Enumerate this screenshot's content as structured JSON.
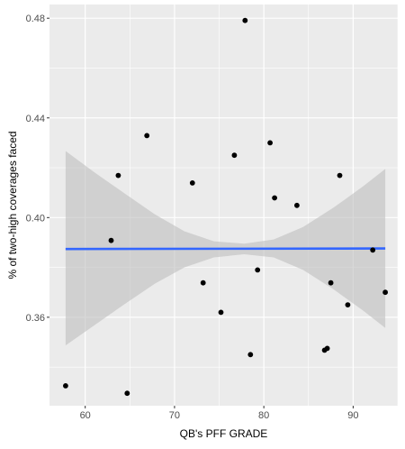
{
  "chart_data": {
    "type": "scatter",
    "xlabel": "QB's PFF GRADE",
    "ylabel": "% of two-high coverages faced",
    "xlim": [
      56.0,
      95.0
    ],
    "ylim": [
      0.3245,
      0.4855
    ],
    "x_ticks": [
      60,
      70,
      80,
      90
    ],
    "y_ticks": [
      0.36,
      0.4,
      0.44,
      0.48
    ],
    "x_tick_labels": [
      "60",
      "70",
      "80",
      "90"
    ],
    "y_tick_labels": [
      "0.36",
      "0.40",
      "0.44",
      "0.48"
    ],
    "grid": true,
    "points": [
      {
        "x": 57.8,
        "y": 0.3325
      },
      {
        "x": 62.9,
        "y": 0.3908
      },
      {
        "x": 63.7,
        "y": 0.4169
      },
      {
        "x": 64.7,
        "y": 0.3295
      },
      {
        "x": 66.9,
        "y": 0.4329
      },
      {
        "x": 72.0,
        "y": 0.4139
      },
      {
        "x": 73.2,
        "y": 0.3738
      },
      {
        "x": 75.2,
        "y": 0.362
      },
      {
        "x": 76.7,
        "y": 0.425
      },
      {
        "x": 77.9,
        "y": 0.4791
      },
      {
        "x": 78.5,
        "y": 0.345
      },
      {
        "x": 79.3,
        "y": 0.379
      },
      {
        "x": 80.7,
        "y": 0.43
      },
      {
        "x": 81.2,
        "y": 0.4079
      },
      {
        "x": 83.7,
        "y": 0.4049
      },
      {
        "x": 86.8,
        "y": 0.3468
      },
      {
        "x": 87.1,
        "y": 0.3475
      },
      {
        "x": 87.5,
        "y": 0.3738
      },
      {
        "x": 88.5,
        "y": 0.4169
      },
      {
        "x": 89.4,
        "y": 0.365
      },
      {
        "x": 92.2,
        "y": 0.387
      },
      {
        "x": 93.6,
        "y": 0.37
      }
    ],
    "trend_line": {
      "method": "linear",
      "x": [
        57.8,
        93.6
      ],
      "y": [
        0.3874,
        0.3876
      ],
      "color": "#3366FF"
    },
    "confidence_band": {
      "x": [
        57.8,
        61.1,
        64.5,
        67.8,
        71.1,
        74.4,
        77.8,
        81.1,
        84.4,
        87.8,
        91.1,
        93.6
      ],
      "upper": [
        0.4267,
        0.418,
        0.4095,
        0.4013,
        0.3945,
        0.3905,
        0.3895,
        0.3912,
        0.3962,
        0.404,
        0.4125,
        0.4195
      ],
      "lower": [
        0.3487,
        0.357,
        0.3655,
        0.3735,
        0.38,
        0.384,
        0.3853,
        0.384,
        0.379,
        0.3712,
        0.3627,
        0.3557
      ]
    },
    "colors": {
      "panel": "#EBEBEB",
      "grid": "#FFFFFF",
      "points": "#000000",
      "band": "#BEBEBE",
      "line": "#3366FF",
      "tick_label": "#4D4D4D",
      "axis_title": "#000000"
    }
  }
}
